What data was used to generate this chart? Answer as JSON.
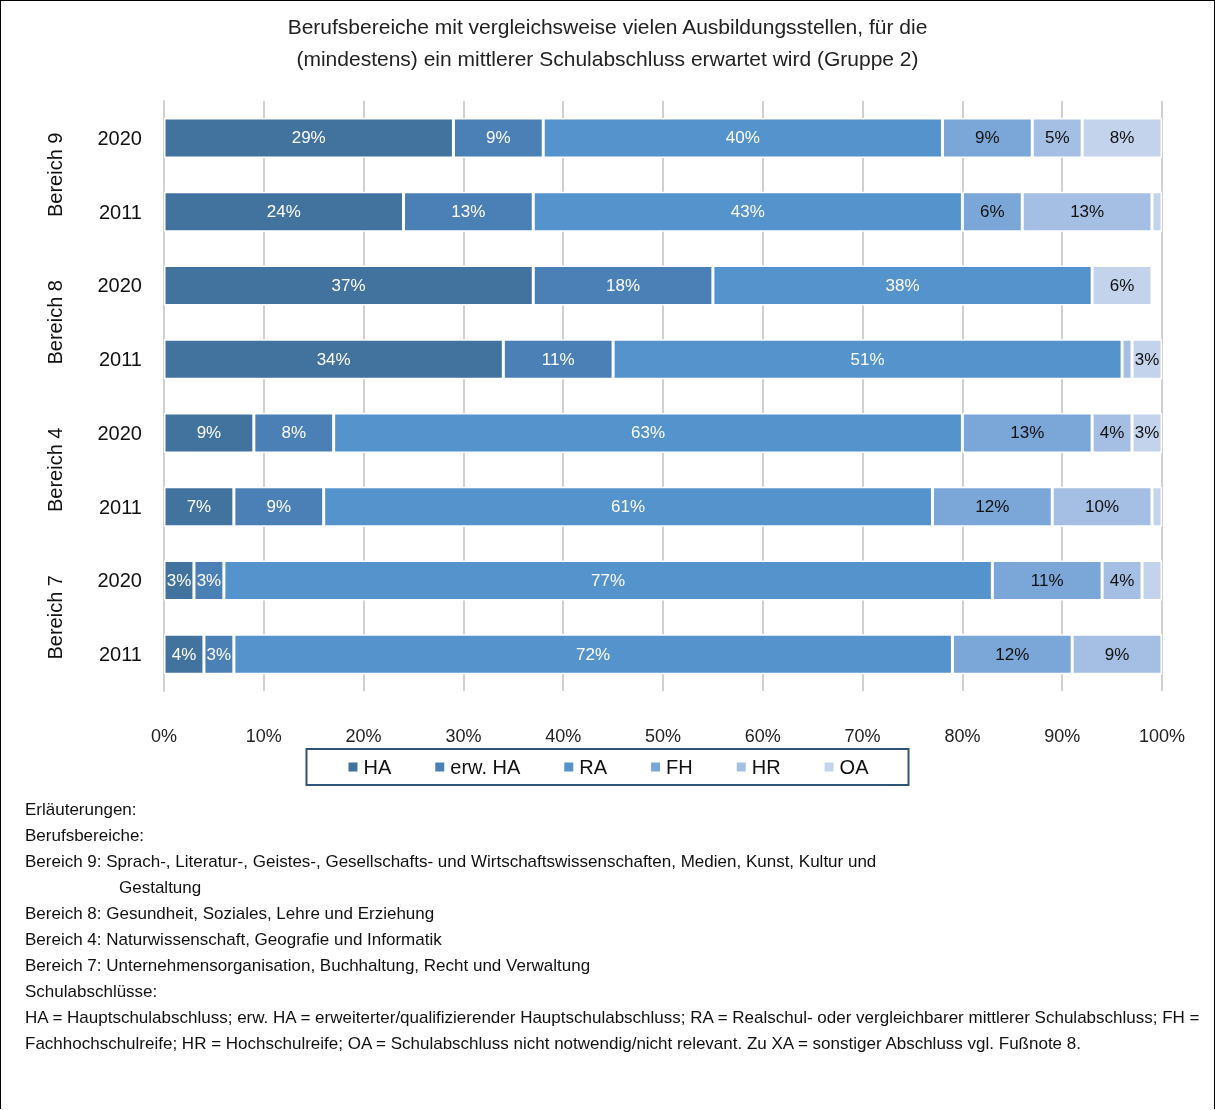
{
  "chart_data": {
    "type": "bar",
    "orientation": "horizontal",
    "stacked": true,
    "title": "Berufsbereiche mit vergleichsweise vielen Ausbildungsstellen, für die (mindestens) ein mittlerer Schulabschluss erwartet wird (Gruppe 2)",
    "categories": [
      "2020",
      "2011",
      "2020",
      "2011",
      "2020",
      "2011",
      "2020",
      "2011"
    ],
    "series": [
      {
        "name": "HA",
        "color": "#42729e",
        "values": [
          29,
          24,
          37,
          34,
          9,
          7,
          3,
          4
        ],
        "value_labels": [
          "29%",
          "24%",
          "37%",
          "34%",
          "9%",
          "7%",
          "3%",
          "4%"
        ]
      },
      {
        "name": "erw. HA",
        "color": "#4b80b6",
        "values": [
          9,
          13,
          18,
          11,
          8,
          9,
          3,
          3
        ],
        "value_labels": [
          "9%",
          "13%",
          "18%",
          "11%",
          "8%",
          "9%",
          "3%",
          "3%"
        ]
      },
      {
        "name": "RA",
        "color": "#5593cc",
        "values": [
          40,
          43,
          38,
          51,
          63,
          61,
          77,
          72
        ],
        "value_labels": [
          "40%",
          "43%",
          "38%",
          "51%",
          "63%",
          "61%",
          "77%",
          "72%"
        ]
      },
      {
        "name": "FH",
        "color": "#7aa7d8",
        "values": [
          9,
          6,
          null,
          null,
          13,
          12,
          11,
          12
        ],
        "value_labels": [
          "9%",
          "6%",
          null,
          null,
          "13%",
          "12%",
          "11%",
          "12%"
        ]
      },
      {
        "name": "HR",
        "color": "#a4bfe3",
        "values": [
          5,
          13,
          null,
          1,
          4,
          10,
          4,
          9
        ],
        "value_labels": [
          "5%",
          "13%",
          null,
          null,
          "4%",
          "10%",
          "4%",
          "9%"
        ]
      },
      {
        "name": "OA",
        "color": "#c3d3eb",
        "values": [
          8,
          1,
          6,
          3,
          3,
          1,
          2,
          null
        ],
        "value_labels": [
          "8%",
          null,
          "6%",
          "3%",
          "3%",
          null,
          null,
          null
        ]
      }
    ],
    "xlim": [
      0,
      100
    ],
    "xticks": [
      {
        "value": 0,
        "label": "0%"
      },
      {
        "value": 10,
        "label": "10%"
      },
      {
        "value": 20,
        "label": "20%"
      },
      {
        "value": 30,
        "label": "30%"
      },
      {
        "value": 40,
        "label": "40%"
      },
      {
        "value": 50,
        "label": "50%"
      },
      {
        "value": 60,
        "label": "60%"
      },
      {
        "value": 70,
        "label": "70%"
      },
      {
        "value": 80,
        "label": "80%"
      },
      {
        "value": 90,
        "label": "90%"
      },
      {
        "value": 100,
        "label": "100%"
      }
    ],
    "grid": "x",
    "legend": "bottom",
    "annotations": [
      "Bereich 9",
      "Bereich 8",
      "Bereich 4",
      "Bereich 7",
      "Erläuterungen:",
      "Berufsbereiche:",
      "Bereich 9: Sprach-, Literatur-, Geistes-, Gesellschafts- und Wirtschaftswissenschaften, Medien, Kunst, Kultur und Gestaltung",
      "Bereich 8: Gesundheit, Soziales, Lehre und Erziehung",
      "Bereich 4: Naturwissenschaft, Geografie und Informatik",
      "Bereich 7: Unternehmensorganisation, Buchhaltung, Recht und Verwaltung",
      "Schulabschlüsse:",
      "HA = Hauptschulabschluss; erw. HA = erweiterter/qualifizierender Hauptschulabschluss; RA = Realschul- oder vergleichbarer mittlerer Schulabschluss; FH = Fachhochschulreife; HR = Hochschulreife; OA = Schulabschluss nicht notwendig/nicht relevant. Zu XA = sonstiger Abschluss vgl. Fußnote 8."
    ]
  }
}
